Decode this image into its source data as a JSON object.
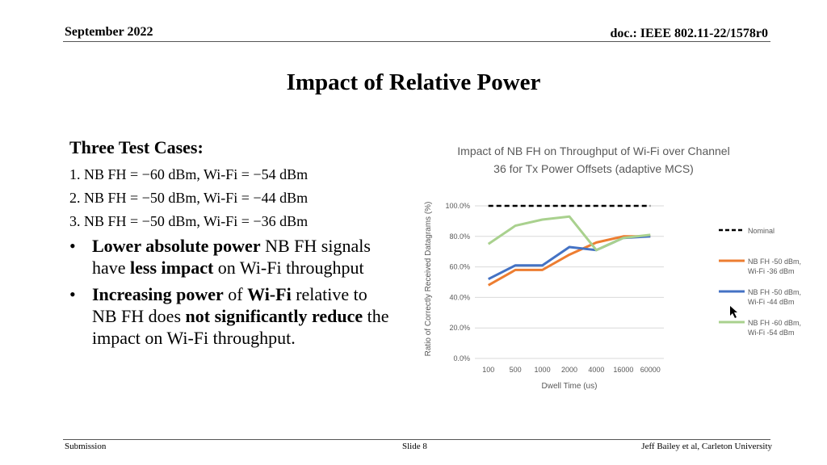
{
  "header": {
    "date": "September 2022",
    "doc": "doc.: IEEE 802.11-22/1578r0"
  },
  "title": "Impact of Relative Power",
  "body": {
    "heading": "Three Test Cases:",
    "cases": [
      "1. NB FH = −60 dBm, Wi-Fi = −54 dBm",
      "2. NB FH = −50 dBm, Wi-Fi = −44 dBm",
      "3. NB FH = −50 dBm, Wi-Fi = −36 dBm"
    ],
    "bullet1": {
      "b1": "Lower absolute power",
      "t1": " NB FH signals have ",
      "b2": "less impact",
      "t2": " on Wi-Fi throughput"
    },
    "bullet2": {
      "b1": "Increasing power",
      "t1": " of ",
      "b2": "Wi-Fi",
      "t2": " relative to NB FH does ",
      "b3": "not significantly reduce",
      "t3": " the impact on  Wi-Fi throughput."
    }
  },
  "footer": {
    "left": "Submission",
    "center": "Slide 8",
    "right": "Jeff Bailey et al, Carleton University"
  },
  "chart_data": {
    "type": "line",
    "title": "Impact of NB FH on Throughput of Wi-Fi over Channel 36 for Tx Power Offsets (adaptive MCS)",
    "title_lines": [
      "Impact of NB FH on Throughput of Wi-Fi over Channel",
      "36 for Tx Power Offsets (adaptive MCS)"
    ],
    "xlabel": "Dwell Time (us)",
    "ylabel": "Ratio of Correctly Received Datagrams (%)",
    "categories": [
      "100",
      "500",
      "1000",
      "2000",
      "4000",
      "16000",
      "60000"
    ],
    "ylim": [
      0,
      100
    ],
    "yticks": [
      "0.0%",
      "20.0%",
      "40.0%",
      "60.0%",
      "80.0%",
      "100.0%"
    ],
    "grid": true,
    "legend_position": "right",
    "series": [
      {
        "name": "Nominal",
        "color": "#000000",
        "dashed": true,
        "values": [
          100,
          100,
          100,
          100,
          100,
          100,
          100
        ]
      },
      {
        "name": "NB FH -50 dBm, Wi-Fi -36 dBm",
        "legend_lines": [
          "NB FH -50 dBm,",
          "Wi-Fi -36 dBm"
        ],
        "color": "#ed7d31",
        "values": [
          48,
          58,
          58,
          68,
          76,
          80,
          80
        ]
      },
      {
        "name": "NB FH -50 dBm, Wi-Fi -44 dBm",
        "legend_lines": [
          "NB FH -50 dBm,",
          "Wi-Fi -44 dBm"
        ],
        "color": "#4472c4",
        "values": [
          52,
          61,
          61,
          73,
          71,
          79,
          80
        ]
      },
      {
        "name": "NB FH -60 dBm, Wi-Fi -54 dBm",
        "legend_lines": [
          "NB FH -60 dBm,",
          "Wi-Fi -54 dBm"
        ],
        "color": "#a9d18e",
        "values": [
          75,
          87,
          91,
          93,
          71,
          79,
          81
        ]
      }
    ]
  }
}
